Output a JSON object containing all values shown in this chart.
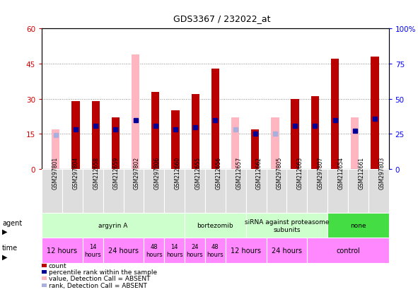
{
  "title": "GDS3367 / 232022_at",
  "samples": [
    "GSM297801",
    "GSM297804",
    "GSM212658",
    "GSM212659",
    "GSM297802",
    "GSM297806",
    "GSM212660",
    "GSM212655",
    "GSM212656",
    "GSM212657",
    "GSM212662",
    "GSM297805",
    "GSM212663",
    "GSM297807",
    "GSM212654",
    "GSM212661",
    "GSM297803"
  ],
  "count_values": [
    17,
    29,
    29,
    22,
    49,
    33,
    25,
    32,
    43,
    22,
    17,
    22,
    30,
    31,
    47,
    22,
    48
  ],
  "count_absent": [
    true,
    false,
    false,
    false,
    true,
    false,
    false,
    false,
    false,
    true,
    false,
    true,
    false,
    false,
    false,
    true,
    false
  ],
  "rank_values": [
    24,
    28,
    31,
    28,
    35,
    31,
    28,
    30,
    35,
    28,
    25,
    25,
    31,
    31,
    35,
    27,
    36
  ],
  "rank_absent": [
    true,
    false,
    false,
    false,
    false,
    false,
    false,
    false,
    false,
    true,
    false,
    true,
    false,
    false,
    false,
    false,
    false
  ],
  "ylim_left": [
    0,
    60
  ],
  "ylim_right": [
    0,
    100
  ],
  "yticks_left": [
    0,
    15,
    30,
    45,
    60
  ],
  "yticks_right": [
    0,
    25,
    50,
    75,
    100
  ],
  "ytick_labels_right": [
    "0",
    "25",
    "50",
    "75",
    "100%"
  ],
  "color_count": "#bb0000",
  "color_count_absent": "#ffb6c1",
  "color_rank": "#000099",
  "color_rank_absent": "#aab0dd",
  "bar_width": 0.4,
  "agent_groups": [
    {
      "label": "argyrin A",
      "cols": [
        0,
        1,
        2,
        3,
        4,
        5,
        6
      ],
      "color": "#ccffcc"
    },
    {
      "label": "bortezomib",
      "cols": [
        7,
        8,
        9
      ],
      "color": "#ccffcc"
    },
    {
      "label": "siRNA against proteasome\nsubunits",
      "cols": [
        10,
        11,
        12,
        13
      ],
      "color": "#ccffcc"
    },
    {
      "label": "none",
      "cols": [
        14,
        15,
        16
      ],
      "color": "#44dd44"
    }
  ],
  "time_groups": [
    {
      "label": "12 hours",
      "cols": [
        0,
        1
      ],
      "color": "#ff88ff",
      "fs": 7
    },
    {
      "label": "14\nhours",
      "cols": [
        2
      ],
      "color": "#ff88ff",
      "fs": 6
    },
    {
      "label": "24 hours",
      "cols": [
        3,
        4
      ],
      "color": "#ff88ff",
      "fs": 7
    },
    {
      "label": "48\nhours",
      "cols": [
        5
      ],
      "color": "#ff88ff",
      "fs": 6
    },
    {
      "label": "14\nhours",
      "cols": [
        6
      ],
      "color": "#ff88ff",
      "fs": 6
    },
    {
      "label": "24\nhours",
      "cols": [
        7
      ],
      "color": "#ff88ff",
      "fs": 6
    },
    {
      "label": "48\nhours",
      "cols": [
        8
      ],
      "color": "#ff88ff",
      "fs": 6
    },
    {
      "label": "12 hours",
      "cols": [
        9,
        10
      ],
      "color": "#ff88ff",
      "fs": 7
    },
    {
      "label": "24 hours",
      "cols": [
        11,
        12
      ],
      "color": "#ff88ff",
      "fs": 7
    },
    {
      "label": "control",
      "cols": [
        13,
        14,
        15,
        16
      ],
      "color": "#ff88ff",
      "fs": 7
    }
  ],
  "legend_items": [
    {
      "color": "#bb0000",
      "label": "count"
    },
    {
      "color": "#000099",
      "label": "percentile rank within the sample"
    },
    {
      "color": "#ffb6c1",
      "label": "value, Detection Call = ABSENT"
    },
    {
      "color": "#aab0dd",
      "label": "rank, Detection Call = ABSENT"
    }
  ]
}
